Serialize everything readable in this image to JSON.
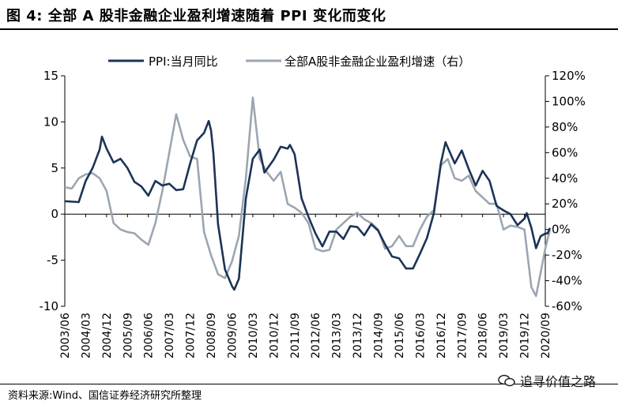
{
  "title": "图  4:  全部 A 股非金融企业盈利增速随着 PPI 变化而变化",
  "source": "资料来源:Wind、国信证券经济研究所整理",
  "watermark": "追寻价值之路",
  "colors": {
    "ppi": "#1c3357",
    "profit": "#9ca6b1",
    "axis": "#000000"
  },
  "chart_data": {
    "type": "line",
    "legend_position": "top",
    "grid": false,
    "x_tick_labels": [
      "2003/06",
      "2004/03",
      "2004/12",
      "2005/09",
      "2006/06",
      "2007/03",
      "2007/12",
      "2008/09",
      "2009/06",
      "2010/03",
      "2010/12",
      "2011/09",
      "2012/06",
      "2013/03",
      "2013/12",
      "2014/09",
      "2015/06",
      "2016/03",
      "2016/12",
      "2017/09",
      "2018/06",
      "2019/03",
      "2019/12",
      "2020/09"
    ],
    "x_range": [
      "2003/06",
      "2020/09"
    ],
    "y_left": {
      "range": [
        -10,
        15
      ],
      "ticks": [
        "15",
        "10",
        "5",
        "0",
        "-5",
        "-10"
      ]
    },
    "y_right": {
      "range": [
        -60,
        120
      ],
      "ticks": [
        "120%",
        "100%",
        "80%",
        "60%",
        "40%",
        "20%",
        "0%",
        "-20%",
        "-40%",
        "-60%"
      ]
    },
    "series": [
      {
        "name": "PPI:当月同比",
        "axis": "left",
        "points": [
          [
            "2003/06",
            1.4
          ],
          [
            "2003/12",
            1.3
          ],
          [
            "2004/03",
            3.6
          ],
          [
            "2004/06",
            5.0
          ],
          [
            "2004/09",
            7.0
          ],
          [
            "2004/10",
            8.4
          ],
          [
            "2004/12",
            7.1
          ],
          [
            "2005/03",
            5.6
          ],
          [
            "2005/06",
            6.0
          ],
          [
            "2005/09",
            5.0
          ],
          [
            "2005/12",
            3.5
          ],
          [
            "2006/03",
            3.0
          ],
          [
            "2006/06",
            2.0
          ],
          [
            "2006/09",
            3.6
          ],
          [
            "2006/12",
            3.1
          ],
          [
            "2007/03",
            3.3
          ],
          [
            "2007/06",
            2.6
          ],
          [
            "2007/09",
            2.7
          ],
          [
            "2007/12",
            5.5
          ],
          [
            "2008/03",
            8.0
          ],
          [
            "2008/06",
            8.8
          ],
          [
            "2008/08",
            10.1
          ],
          [
            "2008/09",
            9.1
          ],
          [
            "2008/10",
            6.6
          ],
          [
            "2008/12",
            -1.1
          ],
          [
            "2009/03",
            -6.0
          ],
          [
            "2009/06",
            -7.8
          ],
          [
            "2009/07",
            -8.2
          ],
          [
            "2009/09",
            -7.0
          ],
          [
            "2009/12",
            1.7
          ],
          [
            "2010/03",
            6.0
          ],
          [
            "2010/06",
            7.0
          ],
          [
            "2010/08",
            4.5
          ],
          [
            "2010/12",
            5.9
          ],
          [
            "2011/03",
            7.3
          ],
          [
            "2011/06",
            7.1
          ],
          [
            "2011/07",
            7.5
          ],
          [
            "2011/09",
            6.5
          ],
          [
            "2011/12",
            1.7
          ],
          [
            "2012/03",
            -0.3
          ],
          [
            "2012/06",
            -2.1
          ],
          [
            "2012/09",
            -3.5
          ],
          [
            "2012/12",
            -1.9
          ],
          [
            "2013/03",
            -1.9
          ],
          [
            "2013/06",
            -2.7
          ],
          [
            "2013/09",
            -1.3
          ],
          [
            "2013/12",
            -1.4
          ],
          [
            "2014/03",
            -2.3
          ],
          [
            "2014/06",
            -1.1
          ],
          [
            "2014/09",
            -1.8
          ],
          [
            "2014/12",
            -3.3
          ],
          [
            "2015/03",
            -4.6
          ],
          [
            "2015/06",
            -4.8
          ],
          [
            "2015/09",
            -5.9
          ],
          [
            "2015/12",
            -5.9
          ],
          [
            "2016/03",
            -4.3
          ],
          [
            "2016/06",
            -2.6
          ],
          [
            "2016/09",
            0.1
          ],
          [
            "2016/12",
            5.5
          ],
          [
            "2017/02",
            7.8
          ],
          [
            "2017/06",
            5.5
          ],
          [
            "2017/09",
            6.9
          ],
          [
            "2017/12",
            4.9
          ],
          [
            "2018/03",
            3.1
          ],
          [
            "2018/06",
            4.7
          ],
          [
            "2018/09",
            3.6
          ],
          [
            "2018/12",
            0.9
          ],
          [
            "2019/03",
            0.4
          ],
          [
            "2019/06",
            0.0
          ],
          [
            "2019/09",
            -1.2
          ],
          [
            "2019/12",
            -0.5
          ],
          [
            "2020/01",
            0.1
          ],
          [
            "2020/03",
            -1.5
          ],
          [
            "2020/05",
            -3.7
          ],
          [
            "2020/07",
            -2.4
          ],
          [
            "2020/09",
            -2.1
          ],
          [
            "2020/10",
            -2.1
          ],
          [
            "2020/11",
            -1.5
          ]
        ]
      },
      {
        "name": "全部A股非金融企业盈利增速（右）",
        "axis": "right",
        "points": [
          [
            "2003/06",
            33
          ],
          [
            "2003/09",
            32
          ],
          [
            "2003/12",
            40
          ],
          [
            "2004/03",
            43
          ],
          [
            "2004/06",
            44
          ],
          [
            "2004/09",
            40
          ],
          [
            "2004/12",
            30
          ],
          [
            "2005/03",
            5
          ],
          [
            "2005/06",
            0
          ],
          [
            "2005/09",
            -2
          ],
          [
            "2005/12",
            -3
          ],
          [
            "2006/03",
            -8
          ],
          [
            "2006/06",
            -12
          ],
          [
            "2006/09",
            5
          ],
          [
            "2006/12",
            30
          ],
          [
            "2007/03",
            60
          ],
          [
            "2007/06",
            90
          ],
          [
            "2007/09",
            70
          ],
          [
            "2007/12",
            57
          ],
          [
            "2008/03",
            55
          ],
          [
            "2008/06",
            -2
          ],
          [
            "2008/09",
            -20
          ],
          [
            "2008/12",
            -35
          ],
          [
            "2009/03",
            -38
          ],
          [
            "2009/06",
            -25
          ],
          [
            "2009/09",
            -5
          ],
          [
            "2009/12",
            40
          ],
          [
            "2010/03",
            103
          ],
          [
            "2010/06",
            55
          ],
          [
            "2010/09",
            45
          ],
          [
            "2010/12",
            38
          ],
          [
            "2011/03",
            45
          ],
          [
            "2011/06",
            20
          ],
          [
            "2011/09",
            17
          ],
          [
            "2011/12",
            13
          ],
          [
            "2012/03",
            5
          ],
          [
            "2012/06",
            -15
          ],
          [
            "2012/09",
            -17
          ],
          [
            "2012/12",
            -16
          ],
          [
            "2013/03",
            0
          ],
          [
            "2013/06",
            5
          ],
          [
            "2013/09",
            10
          ],
          [
            "2013/12",
            13
          ],
          [
            "2014/03",
            8
          ],
          [
            "2014/06",
            5
          ],
          [
            "2014/09",
            0
          ],
          [
            "2014/12",
            -15
          ],
          [
            "2015/03",
            -13
          ],
          [
            "2015/06",
            -5
          ],
          [
            "2015/09",
            -13
          ],
          [
            "2015/12",
            -13
          ],
          [
            "2016/03",
            0
          ],
          [
            "2016/06",
            10
          ],
          [
            "2016/09",
            15
          ],
          [
            "2016/12",
            50
          ],
          [
            "2017/03",
            55
          ],
          [
            "2017/06",
            40
          ],
          [
            "2017/09",
            38
          ],
          [
            "2017/12",
            42
          ],
          [
            "2018/03",
            30
          ],
          [
            "2018/06",
            25
          ],
          [
            "2018/09",
            20
          ],
          [
            "2018/12",
            20
          ],
          [
            "2019/03",
            0
          ],
          [
            "2019/06",
            3
          ],
          [
            "2019/09",
            2
          ],
          [
            "2019/12",
            0
          ],
          [
            "2020/03",
            -45
          ],
          [
            "2020/05",
            -52
          ],
          [
            "2020/09",
            -15
          ],
          [
            "2020/11",
            0
          ]
        ]
      }
    ]
  }
}
